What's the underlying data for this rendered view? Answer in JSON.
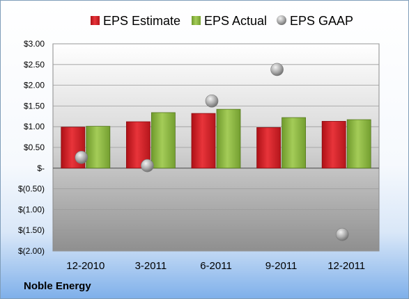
{
  "company": "Noble Energy",
  "chart_data": {
    "type": "bar",
    "categories": [
      "12-2010",
      "3-2011",
      "6-2011",
      "9-2011",
      "12-2011"
    ],
    "series": [
      {
        "name": "EPS Estimate",
        "kind": "bar",
        "color": "#d81f26",
        "values": [
          0.99,
          1.12,
          1.32,
          0.98,
          1.13
        ]
      },
      {
        "name": "EPS Actual",
        "kind": "bar",
        "color": "#8cb43c",
        "values": [
          1.01,
          1.34,
          1.42,
          1.22,
          1.17
        ]
      },
      {
        "name": "EPS GAAP",
        "kind": "scatter",
        "color": "#a8a8a8",
        "values": [
          0.26,
          0.06,
          1.62,
          2.38,
          -1.6
        ]
      }
    ],
    "ylim": [
      -2.0,
      3.0
    ],
    "yticks": [
      3.0,
      2.5,
      2.0,
      1.5,
      1.0,
      0.5,
      0,
      -0.5,
      -1.0,
      -1.5,
      -2.0
    ],
    "ytick_labels": [
      "$3.00",
      "$2.50",
      "$2.00",
      "$1.50",
      "$1.00",
      "$0.50",
      "$-",
      "$(0.50)",
      "$(1.00)",
      "$(1.50)",
      "$(2.00)"
    ],
    "legend_position": "top",
    "grid": true
  }
}
